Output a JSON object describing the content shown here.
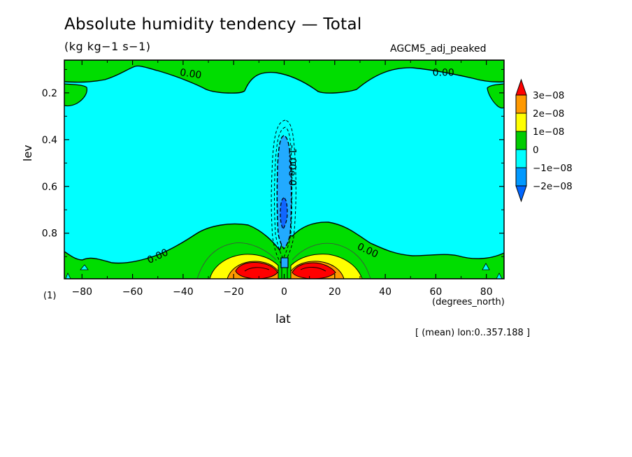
{
  "chart_data": {
    "type": "contour",
    "title": "Absolute humidity tendency — Total",
    "units": "(kg kg−1 s−1)",
    "model": "AGCM5_adj_peaked",
    "xlabel": "lat",
    "xunit": "(degrees_north)",
    "ylabel": "lev",
    "level_marker": "(1)",
    "mean_note": "[ (mean) lon:0..357.188 ]",
    "xlim": [
      -87,
      87
    ],
    "ylim": [
      0.06,
      0.995
    ],
    "y_inverted": true,
    "x_ticks": [
      -80,
      -60,
      -40,
      -20,
      0,
      20,
      40,
      60,
      80
    ],
    "y_ticks": [
      0.2,
      0.4,
      0.6,
      0.8
    ],
    "contour_labels": [
      {
        "text": "0.00",
        "lat": -37,
        "lev": 0.12,
        "rotate": 8
      },
      {
        "text": "0.00",
        "lat": 63,
        "lev": 0.115,
        "rotate": 0
      },
      {
        "text": "0.00",
        "lat": -50,
        "lev": 0.9,
        "rotate": -25
      },
      {
        "text": "0.00",
        "lat": 33,
        "lev": 0.875,
        "rotate": 25
      },
      {
        "text": "-1.00e-0",
        "lat": 3,
        "lev": 0.51,
        "rotate": 90
      }
    ],
    "colorbar": {
      "levels": [
        "3e−08",
        "2e−08",
        "1e−08",
        "0",
        "−1e−08",
        "−2e−08"
      ],
      "colors": [
        "#ff0000",
        "#ff9900",
        "#ffff00",
        "#00cc00",
        "#00ffff",
        "#0099ff",
        "#0066ff"
      ]
    },
    "colors": {
      "positive_low": "#00dd00",
      "negative_low": "#00ffff",
      "yellow": "#ffff00",
      "orange": "#ff9900",
      "red": "#ff0000",
      "blue_mid": "#22aaff",
      "blue_deep": "#1166ff"
    }
  }
}
